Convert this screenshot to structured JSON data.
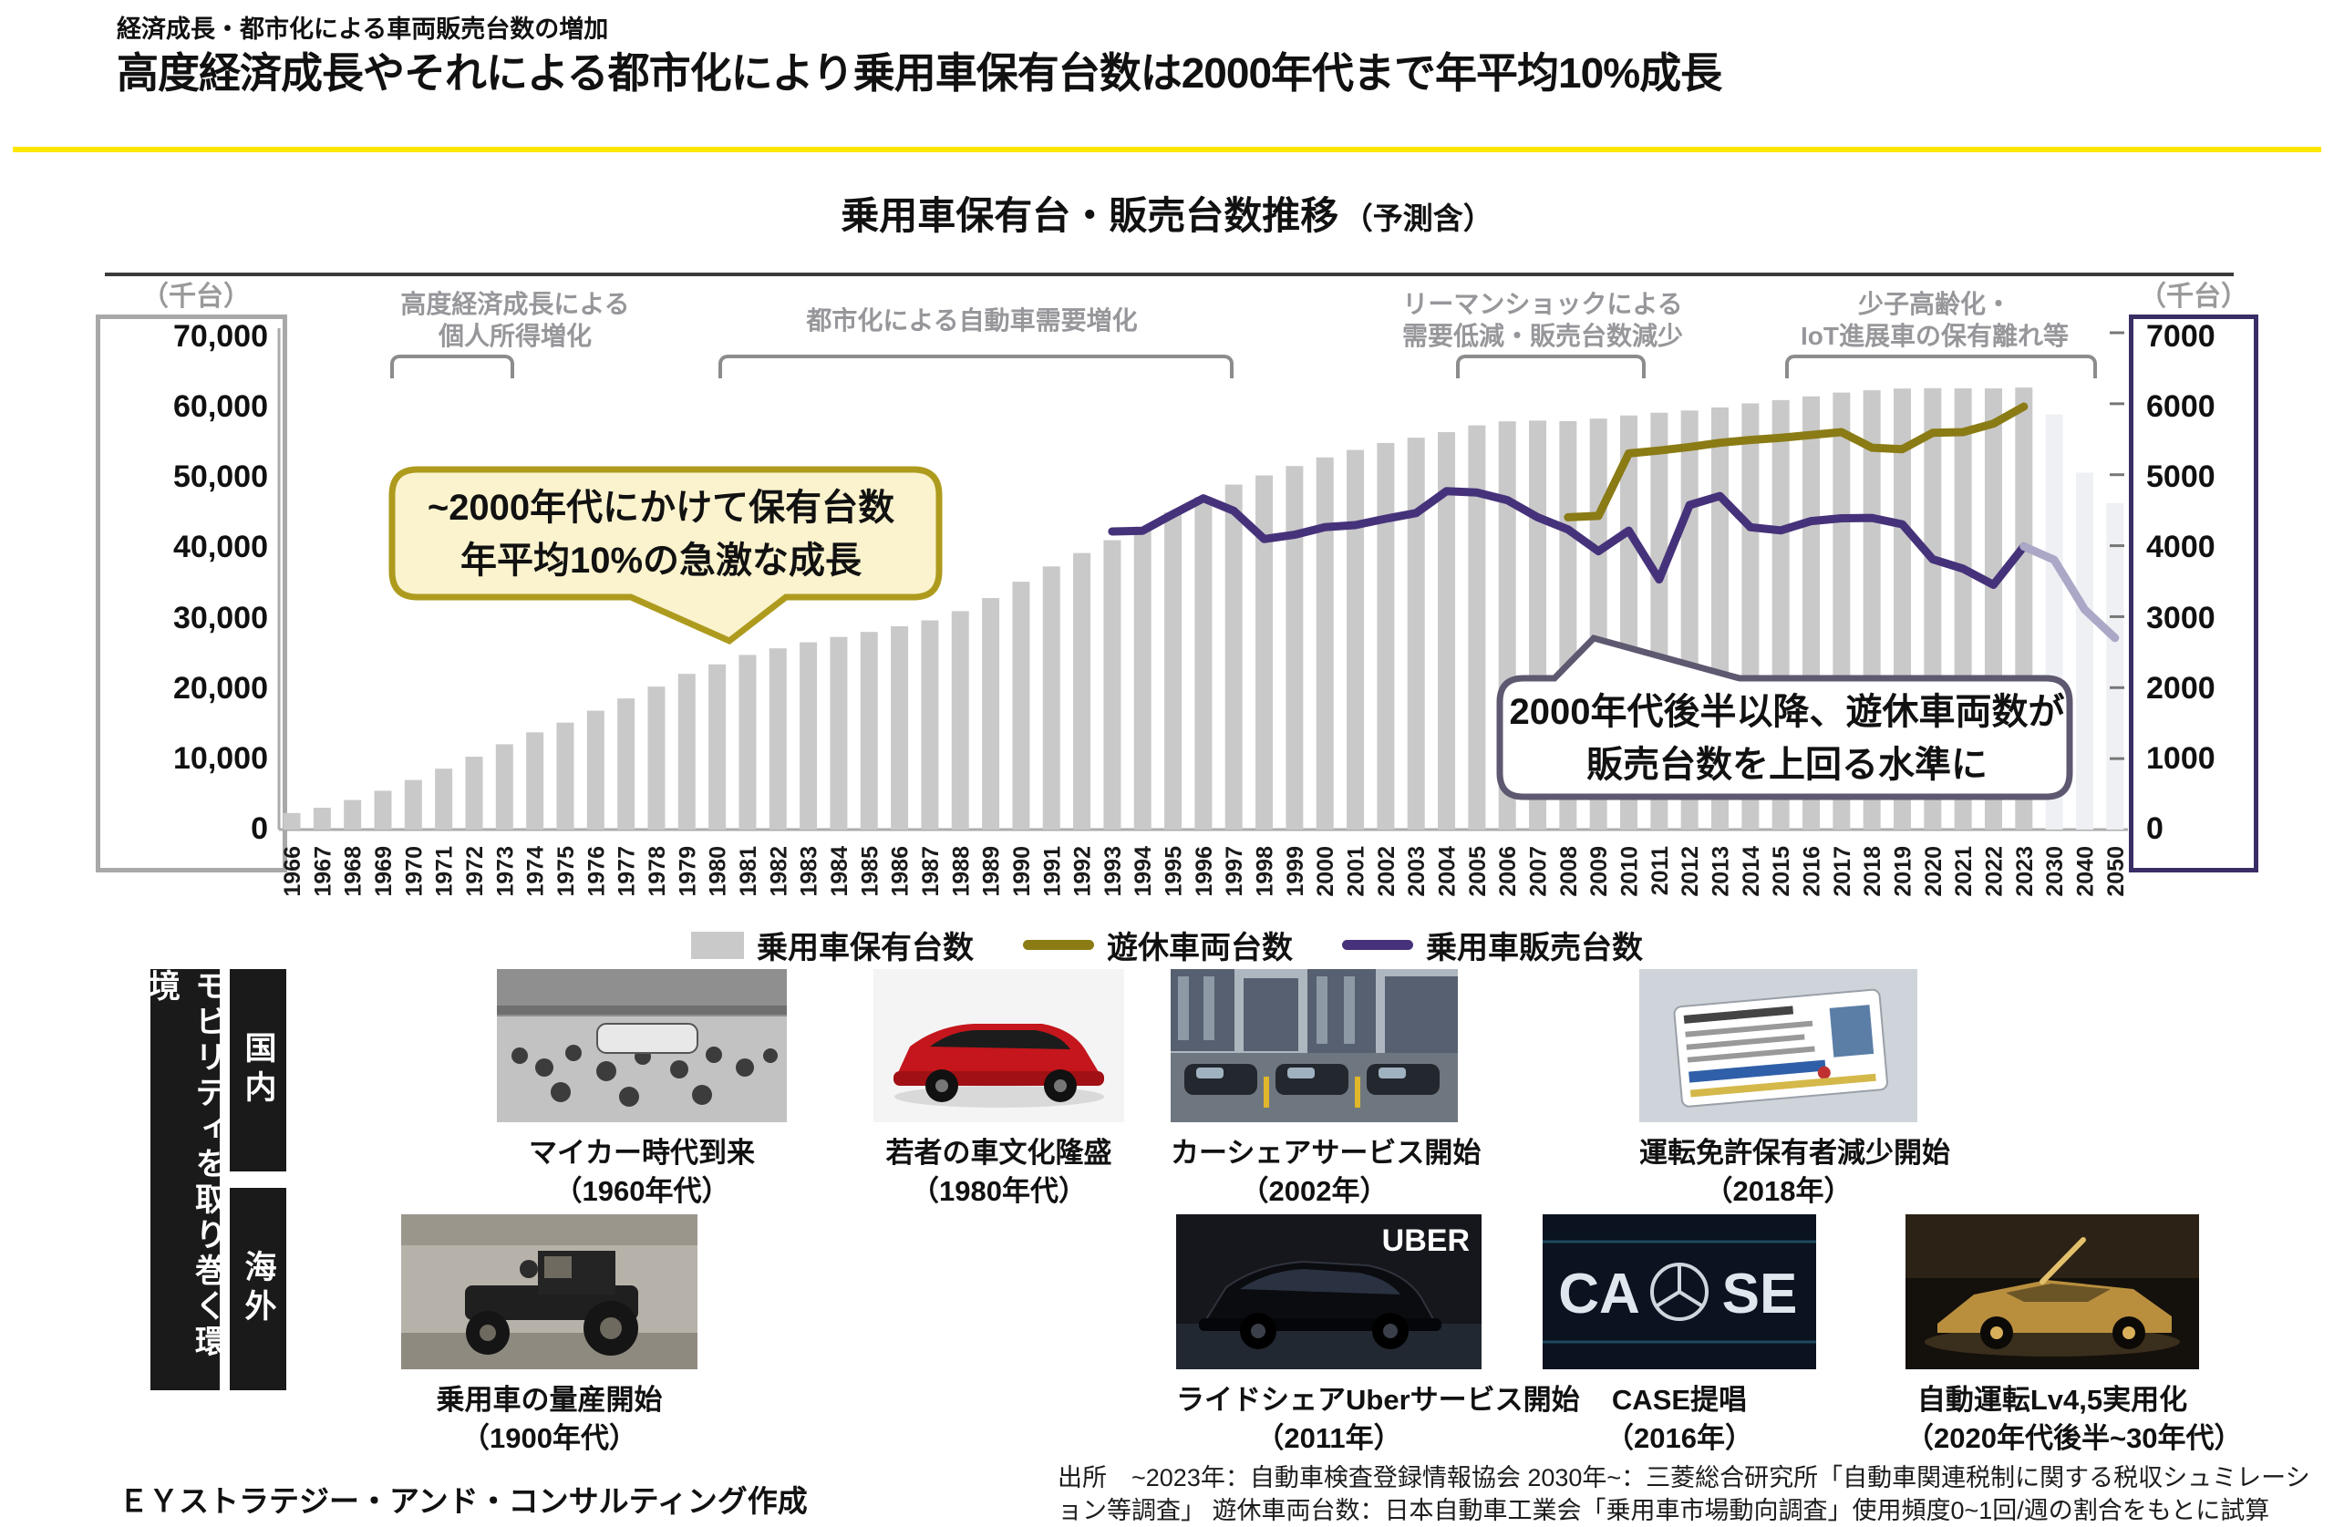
{
  "slide": {
    "kicker": "経済成長・都市化による車両販売台数の増加",
    "title": "高度経済成長やそれによる都市化により乗用車保有台数は2000年代まで年平均10%成長",
    "accent_color": "#FFE600"
  },
  "chart": {
    "title": "乗用車保有台・販売台数推移",
    "title_suffix": "（予測含）",
    "left_axis": {
      "unit": "（千台）",
      "labels": [
        "70,000",
        "60,000",
        "50,000",
        "40,000",
        "30,000",
        "20,000",
        "10,000",
        "0"
      ]
    },
    "right_axis": {
      "unit": "（千台）",
      "labels": [
        "7000",
        "6000",
        "5000",
        "4000",
        "3000",
        "2000",
        "1000",
        "0"
      ]
    },
    "annotations": [
      {
        "lines": [
          "高度経済成長による",
          "個人所得増化"
        ]
      },
      {
        "lines": [
          "都市化による自動車需要増化",
          ""
        ]
      },
      {
        "lines": [
          "リーマンショックによる",
          "需要低減・販売台数減少"
        ]
      },
      {
        "lines": [
          "少子高齢化・",
          "IoT進展車の保有離れ等"
        ]
      }
    ],
    "callouts": [
      {
        "lines": [
          "~2000年代にかけて保有台数",
          "年平均10%の急激な成長"
        ],
        "border": "#AE9B1E",
        "bg": "#FBF3CE"
      },
      {
        "lines": [
          "2000年代後半以降、遊休車両数が",
          "販売台数を上回る水準に"
        ],
        "border": "#5E5870",
        "bg": "#FFFFFF"
      }
    ],
    "legend": [
      {
        "swatch": "bar",
        "color": "#C9C9C9",
        "label": "乗用車保有台数"
      },
      {
        "swatch": "line",
        "color": "#8A7B15",
        "label": "遊休車両台数"
      },
      {
        "swatch": "line",
        "color": "#46327A",
        "label": "乗用車販売台数"
      }
    ]
  },
  "chart_data": {
    "type": "bar",
    "title": "乗用車保有台・販売台数推移（予測含）",
    "ylabel_left": "千台",
    "ylabel_right": "千台",
    "left_max": 70000,
    "right_max": 7000,
    "grid": false,
    "categories": [
      "1966",
      "1967",
      "1968",
      "1969",
      "1970",
      "1971",
      "1972",
      "1973",
      "1974",
      "1975",
      "1976",
      "1977",
      "1978",
      "1979",
      "1980",
      "1981",
      "1982",
      "1983",
      "1984",
      "1985",
      "1986",
      "1987",
      "1988",
      "1989",
      "1990",
      "1991",
      "1992",
      "1993",
      "1994",
      "1995",
      "1996",
      "1997",
      "1998",
      "1999",
      "2000",
      "2001",
      "2002",
      "2003",
      "2004",
      "2005",
      "2006",
      "2007",
      "2008",
      "2009",
      "2010",
      "2011",
      "2012",
      "2013",
      "2014",
      "2015",
      "2016",
      "2017",
      "2018",
      "2019",
      "2020",
      "2021",
      "2022",
      "2023",
      "2030",
      "2040",
      "2050"
    ],
    "bars": {
      "name": "乗用車保有台数",
      "color": "#C9C9C9",
      "forecast_color": "#EFF0F4",
      "forecast_from": 58,
      "values": [
        2333,
        3079,
        4168,
        5467,
        6992,
        8583,
        10272,
        12019,
        13704,
        15066,
        16745,
        18475,
        20143,
        21938,
        23280,
        24612,
        25539,
        26385,
        27144,
        27845,
        28654,
        29478,
        30776,
        32621,
        34924,
        37076,
        38964,
        40772,
        42679,
        44680,
        46868,
        48611,
        49896,
        51222,
        52437,
        53487,
        54471,
        55213,
        55994,
        56949,
        57521,
        57624,
        57551,
        57903,
        58347,
        58730,
        59042,
        59475,
        60052,
        60517,
        61037,
        61573,
        61893,
        62141,
        62194,
        62162,
        62158,
        62270,
        58500,
        50300,
        46000
      ]
    },
    "series": [
      {
        "name": "遊休車両台数",
        "color": "#8A7B15",
        "values": [
          null,
          null,
          null,
          null,
          null,
          null,
          null,
          null,
          null,
          null,
          null,
          null,
          null,
          null,
          null,
          null,
          null,
          null,
          null,
          null,
          null,
          null,
          null,
          null,
          null,
          null,
          null,
          null,
          null,
          null,
          null,
          null,
          null,
          null,
          null,
          null,
          null,
          null,
          null,
          null,
          null,
          null,
          4400,
          4420,
          5300,
          5340,
          5390,
          5450,
          5490,
          5520,
          5560,
          5600,
          5380,
          5360,
          5590,
          5600,
          5720,
          5960,
          null,
          null,
          null
        ]
      },
      {
        "name": "乗用車販売台数",
        "color": "#46327A",
        "values": [
          null,
          null,
          null,
          null,
          null,
          null,
          null,
          null,
          null,
          null,
          null,
          null,
          null,
          null,
          null,
          null,
          null,
          null,
          null,
          null,
          null,
          null,
          null,
          null,
          null,
          null,
          null,
          4200,
          4210,
          4444,
          4668,
          4492,
          4093,
          4154,
          4260,
          4290,
          4380,
          4460,
          4768,
          4748,
          4642,
          4400,
          4228,
          3923,
          4212,
          3525,
          4572,
          4700,
          4260,
          4216,
          4346,
          4386,
          4391,
          4301,
          3810,
          3676,
          3448,
          3990,
          null,
          null,
          null
        ]
      },
      {
        "name": "乗用車販売台数（予測）",
        "color": "#ABA7C6",
        "values": [
          null,
          null,
          null,
          null,
          null,
          null,
          null,
          null,
          null,
          null,
          null,
          null,
          null,
          null,
          null,
          null,
          null,
          null,
          null,
          null,
          null,
          null,
          null,
          null,
          null,
          null,
          null,
          null,
          null,
          null,
          null,
          null,
          null,
          null,
          null,
          null,
          null,
          null,
          null,
          null,
          null,
          null,
          null,
          null,
          null,
          null,
          null,
          null,
          null,
          null,
          null,
          null,
          null,
          null,
          null,
          null,
          null,
          3990,
          3800,
          3100,
          2700
        ]
      }
    ]
  },
  "timeline": {
    "group_label": "モビリティを取り巻く環境",
    "rows": [
      {
        "label": "国内",
        "events": [
          {
            "caption": "マイカー時代到来",
            "year": "（1960年代）"
          },
          {
            "caption": "若者の車文化隆盛",
            "year": "（1980年代）"
          },
          {
            "caption": "カーシェアサービス開始",
            "year": "（2002年）"
          },
          {
            "caption": "運転免許保有者減少開始",
            "year": "（2018年）"
          }
        ]
      },
      {
        "label": "海外",
        "events": [
          {
            "caption": "乗用車の量産開始",
            "year": "（1900年代）"
          },
          {
            "caption": "ライドシェアUberサービス開始",
            "year": "（2011年）",
            "photo_text": "UBER"
          },
          {
            "caption": "CASE提唱",
            "year": "（2016年）",
            "photo_text_left": "CA",
            "photo_text_right": "SE"
          },
          {
            "caption": "自動運転Lv4,5実用化",
            "year": "（2020年代後半~30年代）"
          }
        ]
      }
    ]
  },
  "footer": {
    "credit": "ＥＹストラテジー・アンド・コンサルティング作成",
    "source": "出所　~2023年：自動車検査登録情報協会 2030年~：三菱総合研究所「自動車関連税制に関する税収シュミレーション等調査」 遊休車両台数：日本自動車工業会「乗用車市場動向調査」使用頻度0~1回/週の割合をもとに試算"
  }
}
